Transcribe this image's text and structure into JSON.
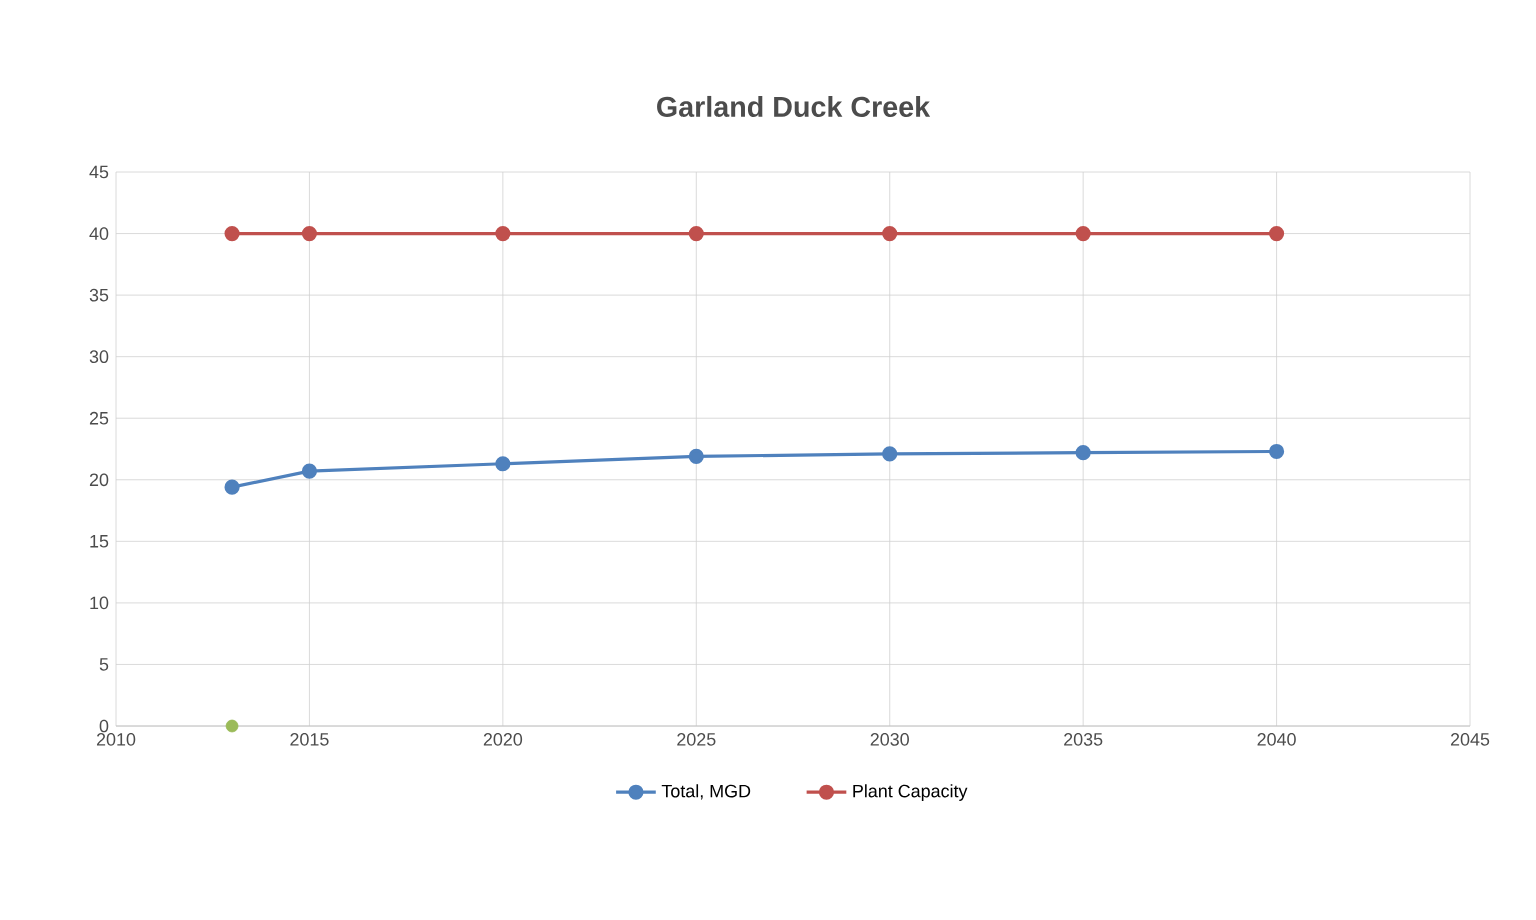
{
  "chart_data": {
    "type": "line",
    "title": "Garland Duck Creek",
    "x": [
      2013,
      2015,
      2020,
      2025,
      2030,
      2035,
      2040
    ],
    "series": [
      {
        "name": "Total, MGD",
        "color": "#4f81bd",
        "values": [
          19.4,
          20.7,
          21.3,
          21.9,
          22.1,
          22.2,
          22.3
        ]
      },
      {
        "name": "Plant Capacity",
        "color": "#c0504d",
        "values": [
          40,
          40,
          40,
          40,
          40,
          40,
          40
        ]
      },
      {
        "type": "scatter",
        "color": "#9bbb59",
        "x": [
          2013
        ],
        "values": [
          0
        ]
      }
    ],
    "xlim": [
      2010,
      2045
    ],
    "xticks": [
      2010,
      2015,
      2020,
      2025,
      2030,
      2035,
      2040,
      2045
    ],
    "ylim": [
      0,
      45
    ],
    "yticks": [
      0,
      5,
      10,
      15,
      20,
      25,
      30,
      35,
      40,
      45
    ],
    "grid": true,
    "legend": "bottom",
    "marker": "circle",
    "line_style": "solid"
  }
}
